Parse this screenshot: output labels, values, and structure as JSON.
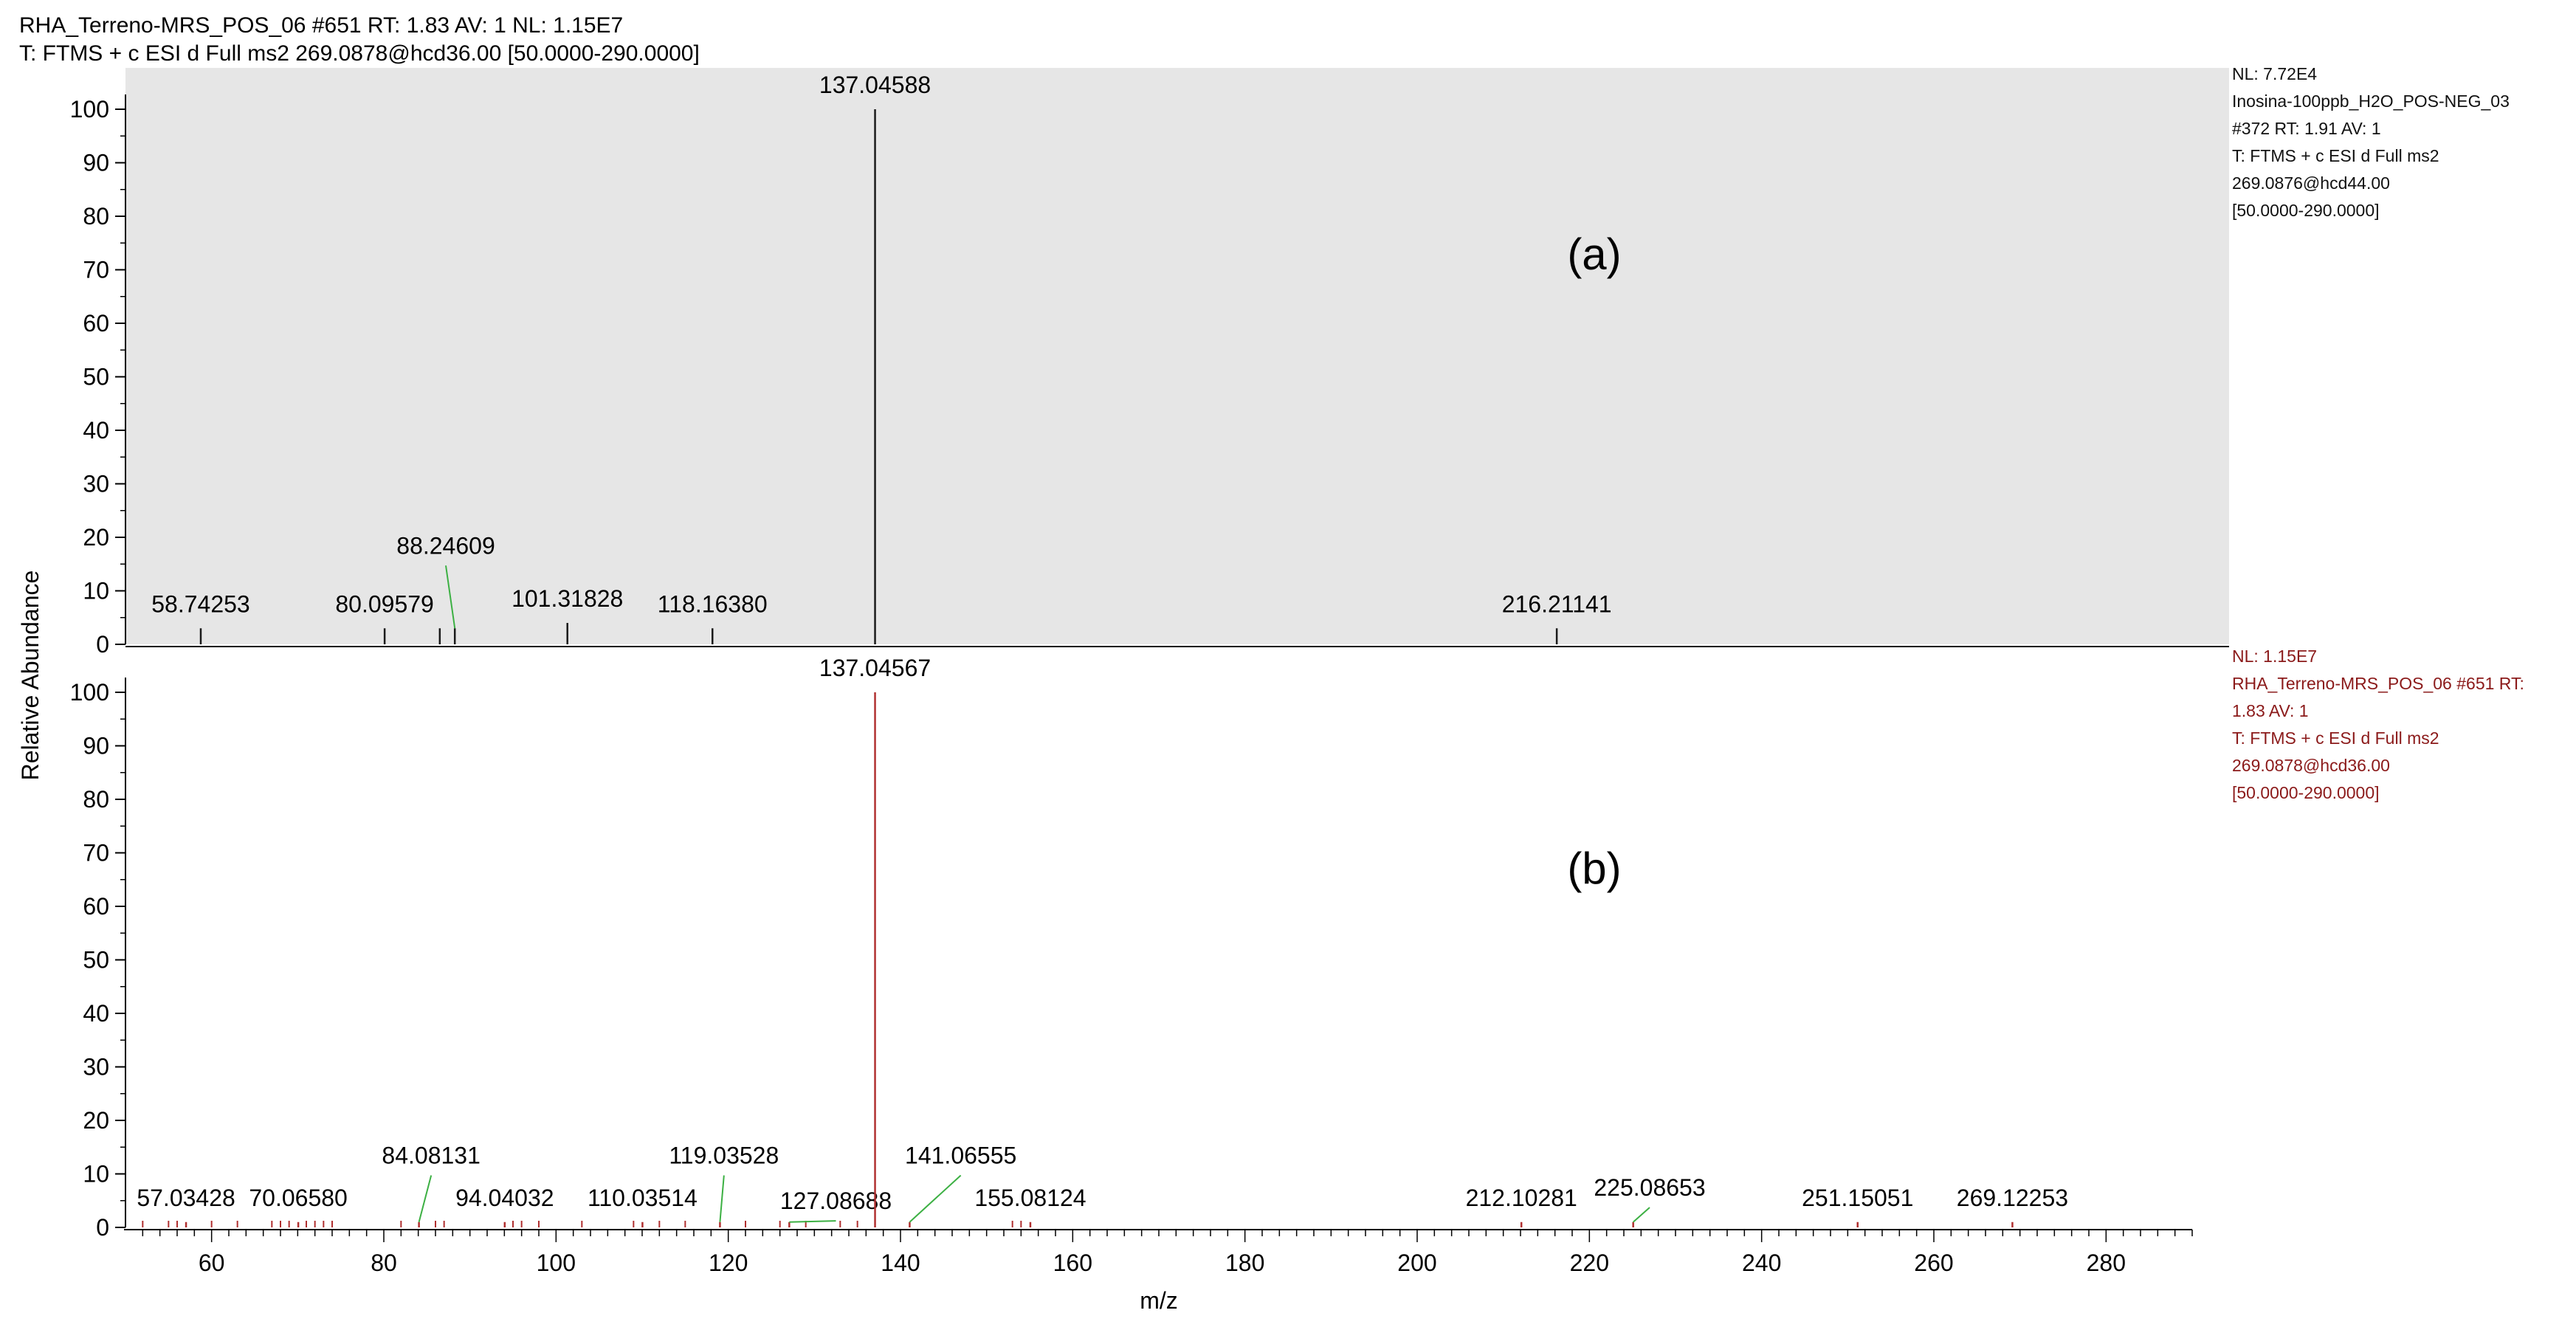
{
  "header": {
    "line1": "RHA_Terreno-MRS_POS_06 #651 RT: 1.83 AV: 1 NL: 1.15E7",
    "line2": "T: FTMS + c ESI d Full ms2 269.0878@hcd36.00 [50.0000-290.0000]"
  },
  "colors": {
    "upper_bg": "#e6e6e6",
    "upper_peaks": "#1a1a1a",
    "lower_peaks": "#b03030",
    "label_leader": "#3cb043",
    "lower_info_text": "#8b1a1a",
    "axis": "#000000"
  },
  "chart_data": [
    {
      "type": "bar",
      "panel_label": "(a)",
      "info": [
        "NL: 7.72E4",
        "Inosina-100ppb_H2O_POS-NEG_03",
        "#372 RT: 1.91 AV: 1",
        "T: FTMS + c ESI d Full ms2",
        "269.0876@hcd44.00",
        "[50.0000-290.0000]"
      ],
      "xlim": [
        50,
        290
      ],
      "ylim": [
        0,
        100
      ],
      "ylabel": "Relative Abundance",
      "yticks": [
        0,
        10,
        20,
        30,
        40,
        50,
        60,
        70,
        80,
        90,
        100
      ],
      "peaks": [
        {
          "mz": 58.74253,
          "rel": 3,
          "label": "58.74253"
        },
        {
          "mz": 80.09579,
          "rel": 3,
          "label": "80.09579"
        },
        {
          "mz": 86.5,
          "rel": 3,
          "label": ""
        },
        {
          "mz": 88.24609,
          "rel": 3,
          "label": "88.24609",
          "label_mz": 87.2,
          "label_rel": 15
        },
        {
          "mz": 101.31828,
          "rel": 4,
          "label": "101.31828"
        },
        {
          "mz": 118.1638,
          "rel": 3,
          "label": "118.16380"
        },
        {
          "mz": 137.04588,
          "rel": 100,
          "label": "137.04588"
        },
        {
          "mz": 216.21141,
          "rel": 3,
          "label": "216.21141"
        }
      ]
    },
    {
      "type": "bar",
      "panel_label": "(b)",
      "info": [
        "NL: 1.15E7",
        "RHA_Terreno-MRS_POS_06 #651 RT:",
        "1.83 AV: 1",
        "T: FTMS + c ESI d Full ms2",
        "269.0878@hcd36.00",
        "[50.0000-290.0000]"
      ],
      "xlim": [
        50,
        290
      ],
      "ylim": [
        0,
        100
      ],
      "xlabel": "m/z",
      "ylabel": "Relative Abundance",
      "xticks": [
        60,
        80,
        100,
        120,
        140,
        160,
        180,
        200,
        220,
        240,
        260,
        280
      ],
      "yticks": [
        0,
        10,
        20,
        30,
        40,
        50,
        60,
        70,
        80,
        90,
        100
      ],
      "peaks": [
        {
          "mz": 57.03428,
          "rel": 1,
          "label": "57.03428"
        },
        {
          "mz": 70.0658,
          "rel": 1,
          "label": "70.06580"
        },
        {
          "mz": 84.08131,
          "rel": 1,
          "label": "84.08131",
          "label_mz": 85.5,
          "label_rel": 10
        },
        {
          "mz": 94.04032,
          "rel": 1,
          "label": "94.04032"
        },
        {
          "mz": 110.03514,
          "rel": 1,
          "label": "110.03514"
        },
        {
          "mz": 119.03528,
          "rel": 1,
          "label": "119.03528",
          "label_mz": 119.5,
          "label_rel": 10
        },
        {
          "mz": 127.08688,
          "rel": 1,
          "label": "127.08688",
          "label_mz": 132.5,
          "label_rel": 1.5
        },
        {
          "mz": 137.04567,
          "rel": 100,
          "label": "137.04567"
        },
        {
          "mz": 141.06555,
          "rel": 1,
          "label": "141.06555",
          "label_mz": 147,
          "label_rel": 10
        },
        {
          "mz": 155.08124,
          "rel": 1,
          "label": "155.08124"
        },
        {
          "mz": 212.10281,
          "rel": 1,
          "label": "212.10281"
        },
        {
          "mz": 225.08653,
          "rel": 1,
          "label": "225.08653",
          "label_mz": 227,
          "label_rel": 4
        },
        {
          "mz": 251.15051,
          "rel": 1,
          "label": "251.15051"
        },
        {
          "mz": 269.12253,
          "rel": 1,
          "label": "269.12253"
        }
      ],
      "minor_peaks_mz": [
        52,
        55,
        56,
        60,
        63,
        67,
        68,
        69,
        71,
        72,
        73,
        74,
        82,
        86,
        87,
        95,
        96,
        98,
        103,
        109,
        112,
        115,
        122,
        126,
        129,
        133,
        135,
        153,
        154
      ]
    }
  ]
}
